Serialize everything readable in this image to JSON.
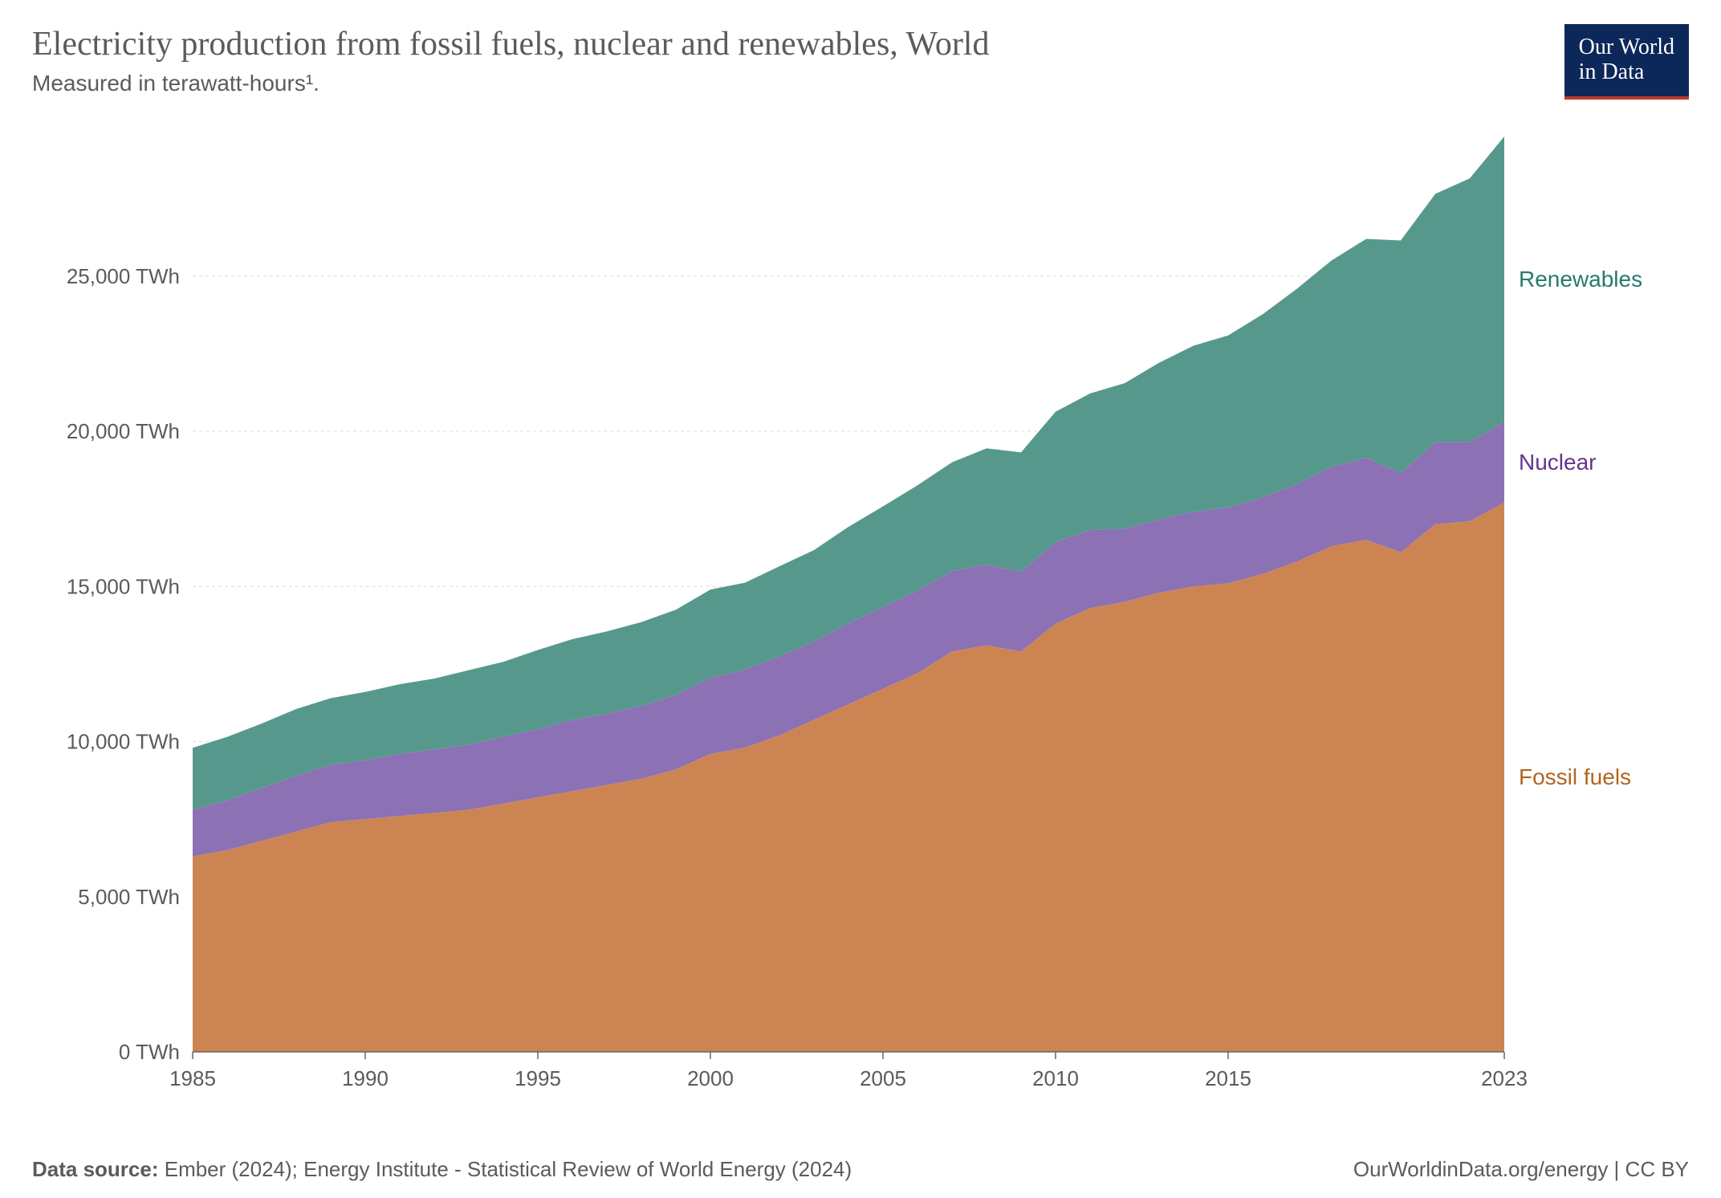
{
  "header": {
    "title": "Electricity production from fossil fuels, nuclear and renewables, World",
    "subtitle": "Measured in terawatt-hours¹.",
    "logo_line1": "Our World",
    "logo_line2": "in Data"
  },
  "chart": {
    "type": "area-stacked",
    "background_color": "#ffffff",
    "grid_color": "#dcdcdc",
    "axis_color": "#666666",
    "x": {
      "min": 1985,
      "max": 2023,
      "ticks": [
        1985,
        1990,
        1995,
        2000,
        2005,
        2010,
        2015,
        2023
      ],
      "tick_labels": [
        "1985",
        "1990",
        "1995",
        "2000",
        "2005",
        "2010",
        "2015",
        "2023"
      ]
    },
    "y": {
      "min": 0,
      "max": 29500,
      "ticks": [
        0,
        5000,
        10000,
        15000,
        20000,
        25000
      ],
      "tick_labels": [
        "0 TWh",
        "5,000 TWh",
        "10,000 TWh",
        "15,000 TWh",
        "20,000 TWh",
        "25,000 TWh"
      ]
    },
    "label_fontsize": 26,
    "series_label_fontsize": 28,
    "years": [
      1985,
      1986,
      1987,
      1988,
      1989,
      1990,
      1991,
      1992,
      1993,
      1994,
      1995,
      1996,
      1997,
      1998,
      1999,
      2000,
      2001,
      2002,
      2003,
      2004,
      2005,
      2006,
      2007,
      2008,
      2009,
      2010,
      2011,
      2012,
      2013,
      2014,
      2015,
      2016,
      2017,
      2018,
      2019,
      2020,
      2021,
      2022,
      2023
    ],
    "series": [
      {
        "name": "Fossil fuels",
        "label": "Fossil fuels",
        "color": "#cc8552",
        "label_color": "#b0661f",
        "values": [
          6300,
          6500,
          6800,
          7100,
          7400,
          7500,
          7600,
          7700,
          7800,
          8000,
          8200,
          8400,
          8600,
          8800,
          9100,
          9600,
          9800,
          10200,
          10700,
          11200,
          11700,
          12200,
          12900,
          13100,
          12900,
          13800,
          14300,
          14500,
          14800,
          15000,
          15100,
          15400,
          15800,
          16300,
          16500,
          16100,
          17000,
          17100,
          17700
        ]
      },
      {
        "name": "Nuclear",
        "label": "Nuclear",
        "color": "#8c71b5",
        "label_color": "#65338f",
        "values": [
          1500,
          1600,
          1700,
          1800,
          1850,
          1900,
          2000,
          2050,
          2100,
          2150,
          2200,
          2300,
          2300,
          2350,
          2400,
          2450,
          2520,
          2550,
          2520,
          2620,
          2630,
          2660,
          2600,
          2600,
          2570,
          2630,
          2520,
          2350,
          2360,
          2410,
          2440,
          2470,
          2500,
          2560,
          2650,
          2550,
          2650,
          2550,
          2600
        ]
      },
      {
        "name": "Renewables",
        "label": "Renewables",
        "color": "#56998c",
        "label_color": "#267a6f",
        "values": [
          2000,
          2050,
          2080,
          2150,
          2150,
          2200,
          2250,
          2280,
          2400,
          2420,
          2550,
          2600,
          2650,
          2700,
          2750,
          2850,
          2800,
          2900,
          2950,
          3100,
          3250,
          3400,
          3500,
          3750,
          3850,
          4200,
          4400,
          4700,
          5050,
          5350,
          5550,
          5900,
          6300,
          6650,
          7050,
          7500,
          8000,
          8500,
          9200
        ]
      }
    ]
  },
  "footer": {
    "source_label": "Data source:",
    "source_text": " Ember (2024); Energy Institute - Statistical Review of World Energy (2024)",
    "right_text": "OurWorldinData.org/energy | CC BY"
  }
}
